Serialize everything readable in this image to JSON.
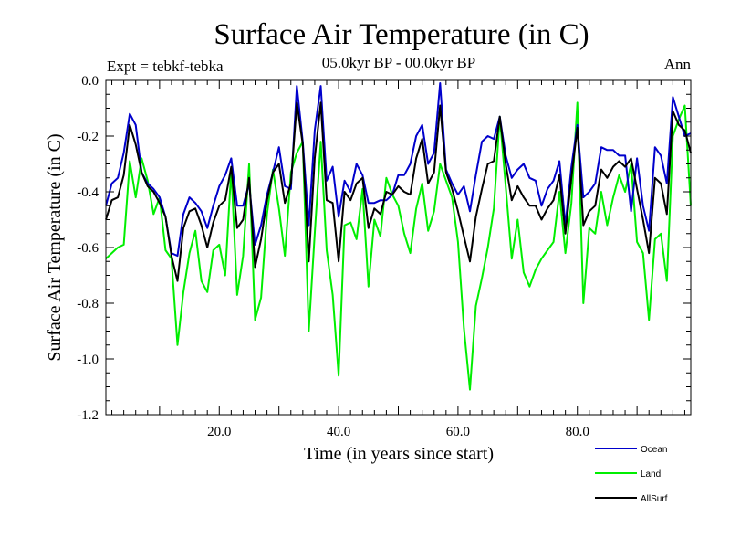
{
  "chart_data": {
    "type": "line",
    "title": "Surface Air Temperature (in C)",
    "subtitle": "05.0kyr BP - 00.0kyr BP",
    "expt_label": "Expt = tebkf-tebka",
    "season_label": "Ann",
    "xlabel": "Time (in years since start)",
    "ylabel": "Surface Air Temperature (in C)",
    "xlim": [
      1,
      99
    ],
    "ylim": [
      -1.2,
      0.0
    ],
    "xticks": [
      20,
      40,
      60,
      80
    ],
    "xtick_labels": [
      "20.0",
      "40.0",
      "60.0",
      "80.0"
    ],
    "yticks": [
      0.0,
      -0.2,
      -0.4,
      -0.6,
      -0.8,
      -1.0,
      -1.2
    ],
    "ytick_labels": [
      "0.0",
      "-0.2",
      "-0.4",
      "-0.6",
      "-0.8",
      "-1.0",
      "-1.2"
    ],
    "x": [
      1,
      2,
      3,
      4,
      5,
      6,
      7,
      8,
      9,
      10,
      11,
      12,
      13,
      14,
      15,
      16,
      17,
      18,
      19,
      20,
      21,
      22,
      23,
      24,
      25,
      26,
      27,
      28,
      29,
      30,
      31,
      32,
      33,
      34,
      35,
      36,
      37,
      38,
      39,
      40,
      41,
      42,
      43,
      44,
      45,
      46,
      47,
      48,
      49,
      50,
      51,
      52,
      53,
      54,
      55,
      56,
      57,
      58,
      59,
      60,
      61,
      62,
      63,
      64,
      65,
      66,
      67,
      68,
      69,
      70,
      71,
      72,
      73,
      74,
      75,
      76,
      77,
      78,
      79,
      80,
      81,
      82,
      83,
      84,
      85,
      86,
      87,
      88,
      89,
      90,
      91,
      92,
      93,
      94,
      95,
      96,
      97,
      98,
      99
    ],
    "series": [
      {
        "name": "Ocean",
        "color": "#0000cc",
        "values": [
          -0.45,
          -0.37,
          -0.35,
          -0.26,
          -0.12,
          -0.16,
          -0.33,
          -0.37,
          -0.39,
          -0.42,
          -0.49,
          -0.62,
          -0.63,
          -0.48,
          -0.42,
          -0.44,
          -0.47,
          -0.53,
          -0.45,
          -0.38,
          -0.34,
          -0.28,
          -0.45,
          -0.45,
          -0.37,
          -0.59,
          -0.52,
          -0.41,
          -0.33,
          -0.24,
          -0.38,
          -0.39,
          -0.02,
          -0.22,
          -0.52,
          -0.18,
          -0.02,
          -0.36,
          -0.31,
          -0.49,
          -0.36,
          -0.4,
          -0.3,
          -0.34,
          -0.44,
          -0.44,
          -0.43,
          -0.43,
          -0.41,
          -0.34,
          -0.34,
          -0.3,
          -0.2,
          -0.16,
          -0.3,
          -0.26,
          -0.01,
          -0.32,
          -0.37,
          -0.41,
          -0.38,
          -0.47,
          -0.34,
          -0.22,
          -0.2,
          -0.21,
          -0.13,
          -0.27,
          -0.35,
          -0.32,
          -0.3,
          -0.35,
          -0.36,
          -0.45,
          -0.39,
          -0.36,
          -0.29,
          -0.52,
          -0.31,
          -0.16,
          -0.42,
          -0.4,
          -0.37,
          -0.24,
          -0.25,
          -0.25,
          -0.27,
          -0.27,
          -0.47,
          -0.28,
          -0.45,
          -0.54,
          -0.24,
          -0.27,
          -0.37,
          -0.06,
          -0.13,
          -0.2,
          -0.19
        ]
      },
      {
        "name": "Land",
        "color": "#00ee00",
        "values": [
          -0.64,
          -0.62,
          -0.6,
          -0.59,
          -0.29,
          -0.42,
          -0.28,
          -0.36,
          -0.48,
          -0.42,
          -0.61,
          -0.64,
          -0.95,
          -0.76,
          -0.62,
          -0.54,
          -0.72,
          -0.76,
          -0.61,
          -0.59,
          -0.7,
          -0.32,
          -0.77,
          -0.63,
          -0.3,
          -0.86,
          -0.78,
          -0.48,
          -0.32,
          -0.46,
          -0.63,
          -0.33,
          -0.26,
          -0.22,
          -0.9,
          -0.55,
          -0.22,
          -0.61,
          -0.77,
          -1.06,
          -0.52,
          -0.51,
          -0.57,
          -0.39,
          -0.74,
          -0.5,
          -0.56,
          -0.35,
          -0.41,
          -0.45,
          -0.55,
          -0.62,
          -0.46,
          -0.37,
          -0.54,
          -0.47,
          -0.3,
          -0.36,
          -0.42,
          -0.58,
          -0.89,
          -1.11,
          -0.81,
          -0.71,
          -0.6,
          -0.46,
          -0.13,
          -0.38,
          -0.64,
          -0.5,
          -0.69,
          -0.74,
          -0.68,
          -0.64,
          -0.61,
          -0.58,
          -0.4,
          -0.62,
          -0.44,
          -0.08,
          -0.8,
          -0.53,
          -0.55,
          -0.4,
          -0.52,
          -0.42,
          -0.34,
          -0.4,
          -0.3,
          -0.58,
          -0.62,
          -0.86,
          -0.57,
          -0.55,
          -0.72,
          -0.2,
          -0.14,
          -0.09,
          -0.45
        ]
      },
      {
        "name": "AllSurf",
        "color": "#000000",
        "values": [
          -0.5,
          -0.43,
          -0.42,
          -0.34,
          -0.16,
          -0.23,
          -0.33,
          -0.38,
          -0.4,
          -0.44,
          -0.49,
          -0.63,
          -0.72,
          -0.53,
          -0.47,
          -0.46,
          -0.52,
          -0.6,
          -0.51,
          -0.45,
          -0.43,
          -0.31,
          -0.53,
          -0.5,
          -0.35,
          -0.67,
          -0.57,
          -0.43,
          -0.33,
          -0.3,
          -0.44,
          -0.37,
          -0.08,
          -0.23,
          -0.65,
          -0.28,
          -0.08,
          -0.43,
          -0.44,
          -0.65,
          -0.4,
          -0.43,
          -0.37,
          -0.35,
          -0.53,
          -0.46,
          -0.48,
          -0.4,
          -0.41,
          -0.38,
          -0.4,
          -0.41,
          -0.28,
          -0.21,
          -0.37,
          -0.33,
          -0.09,
          -0.33,
          -0.39,
          -0.47,
          -0.56,
          -0.65,
          -0.49,
          -0.39,
          -0.3,
          -0.29,
          -0.13,
          -0.3,
          -0.43,
          -0.38,
          -0.42,
          -0.45,
          -0.45,
          -0.5,
          -0.46,
          -0.43,
          -0.34,
          -0.55,
          -0.35,
          -0.17,
          -0.52,
          -0.47,
          -0.45,
          -0.32,
          -0.35,
          -0.31,
          -0.29,
          -0.31,
          -0.28,
          -0.39,
          -0.5,
          -0.62,
          -0.35,
          -0.37,
          -0.48,
          -0.11,
          -0.16,
          -0.18,
          -0.26
        ]
      }
    ],
    "legend_position": "bottom-right",
    "grid": false
  }
}
